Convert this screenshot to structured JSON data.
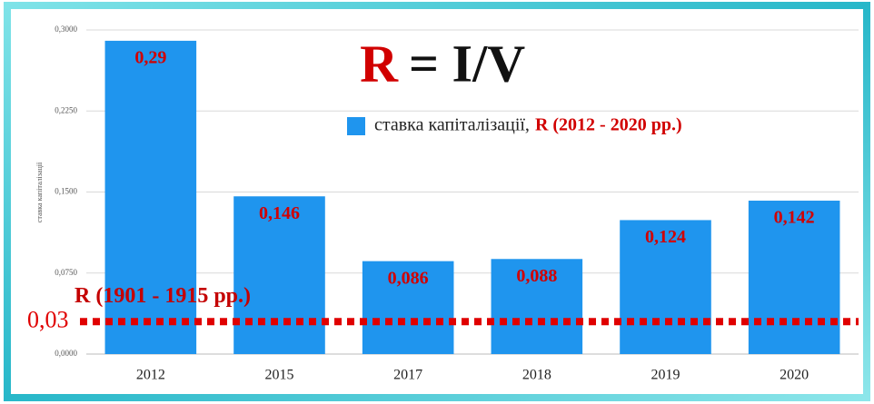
{
  "chart_data": {
    "type": "bar",
    "formula": {
      "left": "R",
      "right": "= I/V"
    },
    "y_axis_label": "ставка капіталізації",
    "categories": [
      "2012",
      "2015",
      "2017",
      "2018",
      "2019",
      "2020"
    ],
    "series": [
      {
        "name": "ставка капіталізації,",
        "name_suffix": "R (2012 - 2020 рр.)",
        "color": "#1f95ee",
        "values": [
          0.29,
          0.146,
          0.086,
          0.088,
          0.124,
          0.142
        ],
        "value_labels": [
          "0,29",
          "0,146",
          "0,086",
          "0,088",
          "0,124",
          "0,142"
        ]
      }
    ],
    "reference_line": {
      "value": 0.03,
      "label": "0,03",
      "caption": "R (1901 - 1915 рр.)",
      "color": "#e00000"
    },
    "ylim": [
      0,
      0.3
    ],
    "yticks": [
      {
        "value": 0,
        "label": "0,0000"
      },
      {
        "value": 0.075,
        "label": "0,0750"
      },
      {
        "value": 0.15,
        "label": "0,1500"
      },
      {
        "value": 0.225,
        "label": "0,2250"
      },
      {
        "value": 0.3,
        "label": "0,3000"
      }
    ],
    "grid": true
  }
}
